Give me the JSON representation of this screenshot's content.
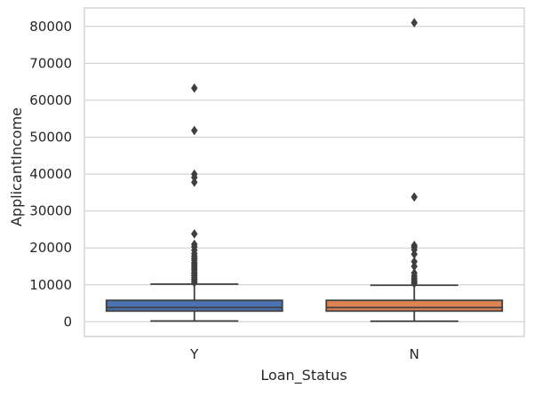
{
  "chart_data": {
    "type": "boxplot",
    "title": "",
    "xlabel": "Loan_Status",
    "ylabel": "ApplicantIncome",
    "ylim": [
      -4000,
      85000
    ],
    "yticks": [
      0,
      10000,
      20000,
      30000,
      40000,
      50000,
      60000,
      70000,
      80000
    ],
    "grid": "horizontal",
    "categories": [
      "Y",
      "N"
    ],
    "series": [
      {
        "category": "Y",
        "color": "#4c72b0",
        "whisker_low": 210,
        "q1": 2900,
        "median": 3850,
        "q3": 5800,
        "whisker_high": 10200,
        "outliers": [
          63300,
          51800,
          40000,
          39100,
          37800,
          23800,
          21000,
          20300,
          19400,
          18500,
          17800,
          17200,
          16700,
          16000,
          15500,
          15000,
          14500,
          14000,
          13400,
          12900,
          12500,
          12000,
          11500,
          11000,
          10600
        ]
      },
      {
        "category": "N",
        "color": "#dd8452",
        "whisker_low": 150,
        "q1": 2900,
        "median": 3850,
        "q3": 5800,
        "whisker_high": 9900,
        "outliers": [
          81000,
          33800,
          20700,
          20200,
          19500,
          18300,
          16300,
          15000,
          13200,
          12400,
          11800,
          11300,
          10800,
          10400
        ]
      }
    ]
  }
}
